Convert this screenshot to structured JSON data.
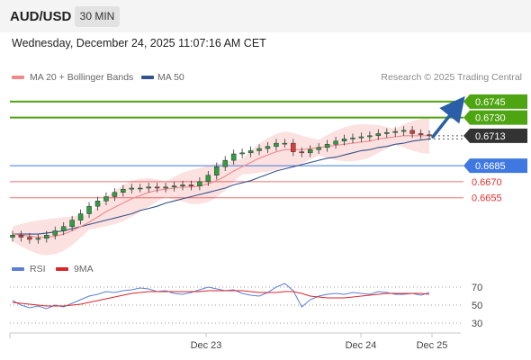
{
  "header": {
    "symbol": "AUD/USD",
    "timeframe": "30 MIN"
  },
  "timestamp": "Wednesday, December 24, 2025 11:07:16 AM CET",
  "legend": {
    "ma20": {
      "label": "MA 20 + Bollinger Bands",
      "color": "#f08a8a"
    },
    "ma50": {
      "label": "MA 50",
      "color": "#34538c"
    }
  },
  "copyright": "Research © 2025 Trading Central",
  "rsi_legend": {
    "rsi": {
      "label": "RSI",
      "color": "#5b7fd6"
    },
    "ma9": {
      "label": "9MA",
      "color": "#d9262b"
    }
  },
  "chart_data": [
    {
      "type": "line",
      "title": "AUD/USD",
      "x_ticks": [
        "Dec 23",
        "Dec 24",
        "Dec 25"
      ],
      "ylim": [
        0.66,
        0.676
      ],
      "current_price": {
        "value": 0.6713,
        "label": "0.6713"
      },
      "levels": [
        {
          "value": 0.6745,
          "label": "0.6745",
          "kind": "resistance",
          "color": "#4ea512"
        },
        {
          "value": 0.673,
          "label": "0.6730",
          "kind": "resistance",
          "color": "#4ea512"
        },
        {
          "value": 0.6685,
          "label": "0.6685",
          "kind": "pivot",
          "color": "#3f78e0"
        },
        {
          "value": 0.667,
          "label": "0.6670",
          "kind": "support",
          "color": "#e84040"
        },
        {
          "value": 0.6655,
          "label": "0.6655",
          "kind": "support",
          "color": "#e84040"
        }
      ],
      "forecast_arrow": {
        "from": 0.6712,
        "to": 0.6745,
        "direction": "up",
        "color": "#2b5ea8"
      },
      "series": [
        {
          "name": "AUD/USD",
          "color": "#222222",
          "values": [
            0.662,
            0.6618,
            0.6616,
            0.6617,
            0.662,
            0.6624,
            0.6628,
            0.6634,
            0.664,
            0.6647,
            0.6652,
            0.6656,
            0.666,
            0.6663,
            0.6664,
            0.6664,
            0.6665,
            0.6664,
            0.6665,
            0.6666,
            0.6667,
            0.6666,
            0.667,
            0.6676,
            0.6684,
            0.669,
            0.6696,
            0.6697,
            0.6699,
            0.6701,
            0.6703,
            0.6706,
            0.6706,
            0.6698,
            0.6697,
            0.67,
            0.6702,
            0.6705,
            0.6708,
            0.671,
            0.6711,
            0.6712,
            0.6713,
            0.6715,
            0.6716,
            0.6717,
            0.6718,
            0.6715,
            0.6714,
            0.6713
          ]
        },
        {
          "name": "MA 20",
          "color": "#f08a8a",
          "values": [
            0.6621,
            0.662,
            0.6619,
            0.6618,
            0.6618,
            0.6619,
            0.6621,
            0.6624,
            0.6628,
            0.6632,
            0.6637,
            0.6642,
            0.6646,
            0.665,
            0.6654,
            0.6657,
            0.666,
            0.6662,
            0.6663,
            0.6664,
            0.6665,
            0.6665,
            0.6666,
            0.6668,
            0.6671,
            0.6675,
            0.668,
            0.6684,
            0.6688,
            0.6692,
            0.6695,
            0.6698,
            0.67,
            0.67,
            0.67,
            0.6701,
            0.6702,
            0.6703,
            0.6704,
            0.6705,
            0.6706,
            0.6707,
            0.6708,
            0.671,
            0.6711,
            0.6712,
            0.6713,
            0.6713,
            0.6713,
            0.6713
          ]
        },
        {
          "name": "MA 50",
          "color": "#34538c",
          "values": [
            0.6621,
            0.6621,
            0.6621,
            0.6621,
            0.6622,
            0.6623,
            0.6624,
            0.6626,
            0.6628,
            0.663,
            0.6632,
            0.6634,
            0.6636,
            0.6638,
            0.664,
            0.6643,
            0.6645,
            0.6647,
            0.665,
            0.6652,
            0.6654,
            0.6656,
            0.6658,
            0.666,
            0.6662,
            0.6664,
            0.6667,
            0.6669,
            0.6671,
            0.6674,
            0.6677,
            0.668,
            0.6682,
            0.6684,
            0.6686,
            0.6688,
            0.669,
            0.6692,
            0.6693,
            0.6695,
            0.6697,
            0.6699,
            0.67,
            0.6702,
            0.6703,
            0.6705,
            0.6706,
            0.6708,
            0.6709,
            0.671
          ]
        }
      ]
    },
    {
      "type": "line",
      "title": "RSI",
      "ylim": [
        22,
        78
      ],
      "y_ticks": [
        70,
        50,
        30
      ],
      "series": [
        {
          "name": "RSI",
          "color": "#5b7fd6",
          "values": [
            55,
            50,
            47,
            49,
            46,
            50,
            48,
            52,
            56,
            60,
            62,
            65,
            64,
            66,
            67,
            69,
            68,
            65,
            66,
            63,
            62,
            64,
            67,
            70,
            68,
            66,
            67,
            63,
            61,
            60,
            64,
            70,
            74,
            66,
            48,
            56,
            60,
            62,
            63,
            62,
            64,
            63,
            62,
            65,
            64,
            62,
            62,
            63,
            61,
            64
          ]
        },
        {
          "name": "9MA",
          "color": "#d9262b",
          "values": [
            53,
            52,
            51,
            50,
            49,
            49,
            49,
            50,
            51,
            53,
            55,
            57,
            59,
            61,
            63,
            64,
            65,
            65,
            65,
            65,
            65,
            65,
            65,
            66,
            66,
            66,
            66,
            66,
            65,
            64,
            64,
            64,
            65,
            65,
            63,
            60,
            59,
            58,
            58,
            58,
            59,
            60,
            61,
            62,
            63,
            63,
            63,
            63,
            63,
            62
          ]
        }
      ]
    }
  ]
}
